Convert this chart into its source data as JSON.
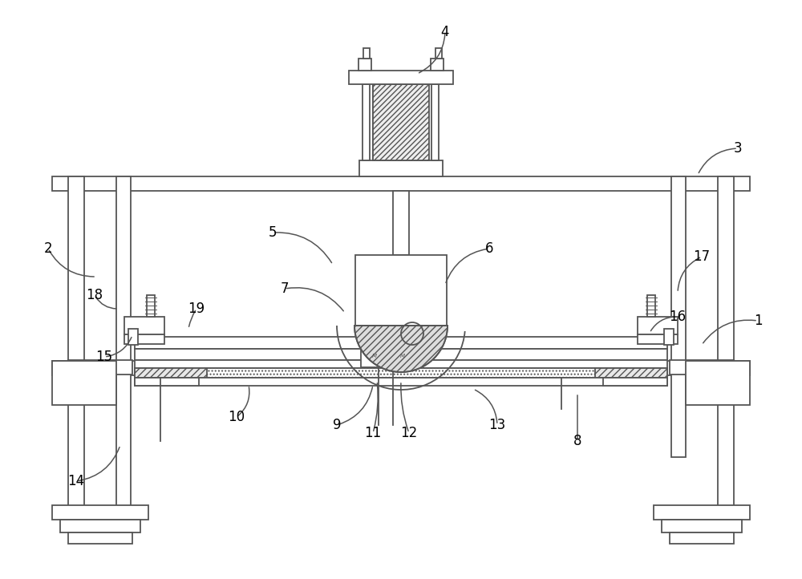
{
  "bg": "#ffffff",
  "lc": "#555555",
  "lw": 1.3,
  "figsize": [
    10.0,
    7.22
  ],
  "dpi": 100,
  "annotations": [
    [
      "4",
      555,
      40,
      520,
      92,
      -0.3
    ],
    [
      "3",
      920,
      185,
      870,
      218,
      0.3
    ],
    [
      "2",
      60,
      310,
      120,
      345,
      0.3
    ],
    [
      "5",
      340,
      290,
      415,
      330,
      -0.3
    ],
    [
      "6",
      610,
      310,
      555,
      355,
      0.3
    ],
    [
      "7",
      355,
      360,
      430,
      390,
      -0.3
    ],
    [
      "1",
      945,
      400,
      875,
      430,
      0.3
    ],
    [
      "8",
      720,
      550,
      720,
      490,
      0.0
    ],
    [
      "9",
      420,
      530,
      465,
      480,
      0.3
    ],
    [
      "10",
      295,
      520,
      310,
      480,
      0.3
    ],
    [
      "11",
      465,
      540,
      470,
      475,
      0.1
    ],
    [
      "12",
      510,
      540,
      500,
      475,
      -0.1
    ],
    [
      "13",
      620,
      530,
      590,
      485,
      0.3
    ],
    [
      "14",
      95,
      600,
      150,
      555,
      0.3
    ],
    [
      "15",
      130,
      445,
      165,
      418,
      0.3
    ],
    [
      "16",
      845,
      395,
      810,
      415,
      0.3
    ],
    [
      "17",
      875,
      320,
      845,
      365,
      0.3
    ],
    [
      "18",
      118,
      368,
      148,
      385,
      0.3
    ],
    [
      "19",
      245,
      385,
      235,
      410,
      0.1
    ]
  ]
}
